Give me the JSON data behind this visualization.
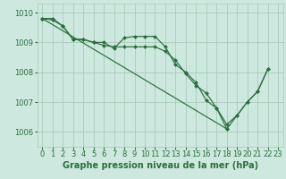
{
  "background_color": "#cce8df",
  "grid_color": "#aaccbb",
  "line_color": "#2d6e3e",
  "marker_color": "#2d6e3e",
  "xlabel": "Graphe pression niveau de la mer (hPa)",
  "xlabel_fontsize": 7,
  "tick_label_fontsize": 6,
  "ylim": [
    1005.5,
    1010.3
  ],
  "xlim": [
    -0.5,
    23.5
  ],
  "yticks": [
    1006,
    1007,
    1008,
    1009,
    1010
  ],
  "xticks": [
    0,
    1,
    2,
    3,
    4,
    5,
    6,
    7,
    8,
    9,
    10,
    11,
    12,
    13,
    14,
    15,
    16,
    17,
    18,
    19,
    20,
    21,
    22,
    23
  ],
  "series": [
    {
      "x": [
        0,
        1,
        2,
        3,
        4,
        5,
        6,
        7,
        8,
        9,
        10,
        11,
        12,
        13,
        14,
        15,
        16,
        17,
        18,
        19,
        20,
        21,
        22
      ],
      "y": [
        1009.8,
        1009.8,
        1009.55,
        1009.1,
        1009.1,
        1009.0,
        1009.0,
        1008.8,
        1009.15,
        1009.2,
        1009.2,
        1009.2,
        1008.85,
        1008.25,
        1008.0,
        1007.65,
        1007.05,
        1006.8,
        1006.25,
        1006.55,
        1007.0,
        1007.35,
        1008.1
      ]
    },
    {
      "x": [
        0,
        1,
        2,
        3,
        4,
        5,
        6,
        7,
        8,
        9,
        10,
        11,
        12,
        13,
        14,
        15,
        16,
        17,
        18
      ],
      "y": [
        1009.8,
        1009.75,
        1009.55,
        1009.1,
        1009.1,
        1009.0,
        1008.9,
        1008.85,
        1008.85,
        1008.85,
        1008.85,
        1008.85,
        1008.7,
        1008.4,
        1007.95,
        1007.55,
        1007.3,
        1006.8,
        1006.1
      ]
    },
    {
      "x": [
        0,
        18,
        19,
        20,
        21,
        22
      ],
      "y": [
        1009.8,
        1006.1,
        1006.55,
        1007.0,
        1007.35,
        1008.1
      ]
    }
  ]
}
